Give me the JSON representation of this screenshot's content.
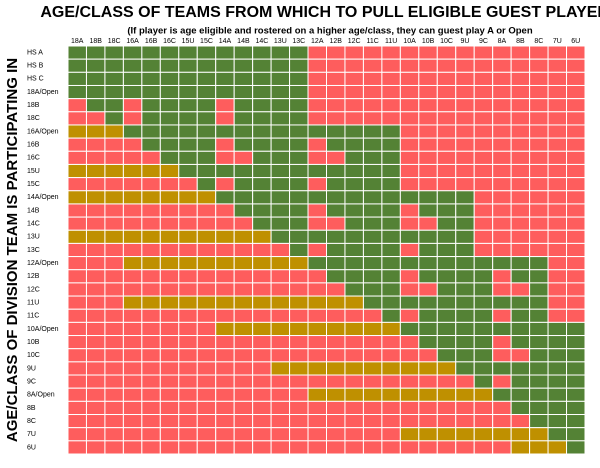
{
  "title": "AGE/CLASS OF TEAMS FROM WHICH TO PULL ELIGIBLE GUEST PLAYERS",
  "subtitle": "(If player is age eligible and rostered on a higher age/class, they can guest play A or Open",
  "side_label": "AGE/CLASS OF DIVISION TEAM IS PARTICIPATING IN",
  "colors": {
    "G": "#548235",
    "R": "#fe5d5d",
    "Y": "#bf9000"
  },
  "columns": [
    "18A",
    "18B",
    "18C",
    "16A",
    "16B",
    "16C",
    "15U",
    "15C",
    "14A",
    "14B",
    "14C",
    "13U",
    "13C",
    "12A",
    "12B",
    "12C",
    "11C",
    "11U",
    "10A",
    "10B",
    "10C",
    "9U",
    "9C",
    "8A",
    "8B",
    "8C",
    "7U",
    "6U"
  ],
  "rows": [
    {
      "label": "HS A",
      "cells": "GGGGGGGGGGGGGRRRRRRRRRRRRRRR"
    },
    {
      "label": "HS B",
      "cells": "GGGGGGGGGGGGGRRRRRRRRRRRRRRR"
    },
    {
      "label": "HS C",
      "cells": "GGGGGGGGGGGGGRRRRRRRRRRRRRRR"
    },
    {
      "label": "18A/Open",
      "cells": "GGGGGGGGGGGGGRRRRRRRRRRRRRRR"
    },
    {
      "label": "18B",
      "cells": "RGGRGGGGRGGGGRRRRRRRRRRRRRRR"
    },
    {
      "label": "18C",
      "cells": "RRGRGGGGRGGGGRRRRRRRRRRRRRRR"
    },
    {
      "label": "16A/Open",
      "cells": "YYYGGGGGGGGGGGGGGGRRRRRRRRRR"
    },
    {
      "label": "16B",
      "cells": "RRRRGGGGRGGGGRGGGGRRRRRRRRRR"
    },
    {
      "label": "16C",
      "cells": "RRRRRGGGRRGGGRRGGGRRRRRRRRRR"
    },
    {
      "label": "15U",
      "cells": "YYYYYYGGGGGGGGGGGGRRRRRRRRRR"
    },
    {
      "label": "15C",
      "cells": "RRRRRRRGRGGGGRGGGGRRRRRRRRRR"
    },
    {
      "label": "14A/Open",
      "cells": "YYYYYYYYGGGGGGGGGGGGGGRRRRRR"
    },
    {
      "label": "14B",
      "cells": "RRRRRRRRRGGGGRGGGGRGGGRRRRRR"
    },
    {
      "label": "14C",
      "cells": "RRRRRRRRRRGGGRRGGGRRGGRRRRRR"
    },
    {
      "label": "13U",
      "cells": "YYYYYYYYYYYGGGGGGGGGGGRRRRRR"
    },
    {
      "label": "13C",
      "cells": "RRRRRRRRRRRRGRGGGGRGGGRRRRRR"
    },
    {
      "label": "12A/Open",
      "cells": "RRRYYYYYYYYYYGGGGGGGGGGGGGRR"
    },
    {
      "label": "12B",
      "cells": "RRRRRRRRRRRRRRGGGGRGGGGRGGRR"
    },
    {
      "label": "12C",
      "cells": "RRRRRRRRRRRRRRRGGGRRGGGRRGRR"
    },
    {
      "label": "11U",
      "cells": "RRRYYYYYYYYYYYYYGGGGGGGGGGRR"
    },
    {
      "label": "11C",
      "cells": "RRRRRRRRRRRRRRRRRGRGGGGRGGRR"
    },
    {
      "label": "10A/Open",
      "cells": "RRRRRRRRYYYYYYYYYYGGGGGGGGGG"
    },
    {
      "label": "10B",
      "cells": "RRRRRRRRRRRRRRRRRRRGGGGRGGGG"
    },
    {
      "label": "10C",
      "cells": "RRRRRRRRRRRRRRRRRRRRGGGRRGGG"
    },
    {
      "label": "9U",
      "cells": "RRRRRRRRRRRYYYYYYYYYYGGGGGGG"
    },
    {
      "label": "9C",
      "cells": "RRRRRRRRRRRRRRRRRRRRRRGRGGGG"
    },
    {
      "label": "8A/Open",
      "cells": "RRRRRRRRRRRRRYYYYYYYYYYGGGGG"
    },
    {
      "label": "8B",
      "cells": "RRRRRRRRRRRRRRRRRRRRRRRRGGGG"
    },
    {
      "label": "8C",
      "cells": "RRRRRRRRRRRRRRRRRRRRRRRRRGGG"
    },
    {
      "label": "7U",
      "cells": "RRRRRRRRRRRRRRRRRRYYYYYYYYGG"
    },
    {
      "label": "6U",
      "cells": "RRRRRRRRRRRRRRRRRRRRRRRRYYYG"
    }
  ]
}
